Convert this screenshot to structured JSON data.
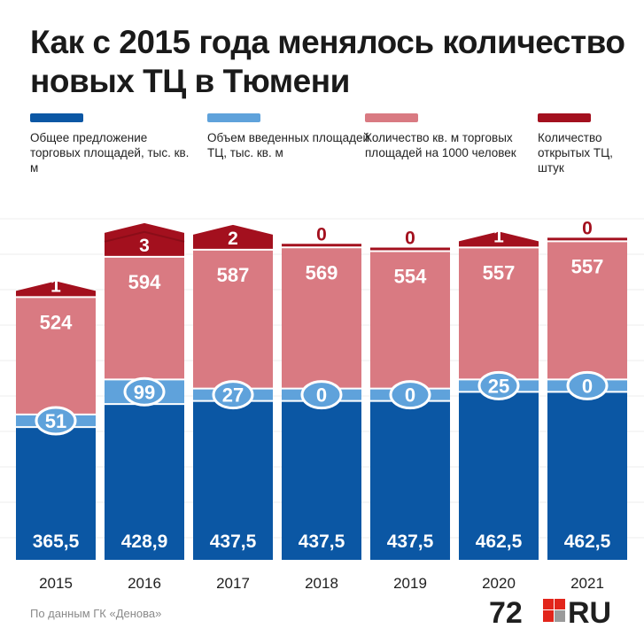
{
  "title": "Как с 2015 года менялось количество новых ТЦ в Тюмени",
  "legend": [
    {
      "label": "Общее предложение торговых площадей, тыс. кв. м",
      "color": "#0b57a4"
    },
    {
      "label": "Объем введенных площадей ТЦ, тыс. кв. м",
      "color": "#5fa2db"
    },
    {
      "label": "Количество кв. м торговых площадей на 1000 человек",
      "color": "#d97a82"
    },
    {
      "label": "Количество открытых ТЦ, штук",
      "color": "#a3101e"
    }
  ],
  "source": "По данным ГК «Денова»",
  "logo": {
    "left": "72",
    "right": "RU"
  },
  "chart_data": {
    "type": "bar",
    "categories": [
      "2015",
      "2016",
      "2017",
      "2018",
      "2019",
      "2020",
      "2021"
    ],
    "series": [
      {
        "name": "Общее предложение торговых площадей, тыс. кв. м",
        "values": [
          "365,5",
          "428,9",
          "437,5",
          "437,5",
          "437,5",
          "462,5",
          "462,5"
        ],
        "color": "#0b57a4"
      },
      {
        "name": "Объем введенных площадей ТЦ, тыс. кв. м",
        "values": [
          "51",
          "99",
          "27",
          "0",
          "0",
          "25",
          "0"
        ],
        "color": "#5fa2db"
      },
      {
        "name": "Количество кв. м торговых площадей на 1000 человек",
        "values": [
          "524",
          "594",
          "587",
          "569",
          "554",
          "557",
          "557"
        ],
        "color": "#d97a82"
      },
      {
        "name": "Количество открытых ТЦ, штук",
        "values": [
          "1",
          "3",
          "2",
          "0",
          "0",
          "1",
          "0"
        ],
        "color": "#a3101e"
      }
    ],
    "stacked": true,
    "grid": true
  }
}
